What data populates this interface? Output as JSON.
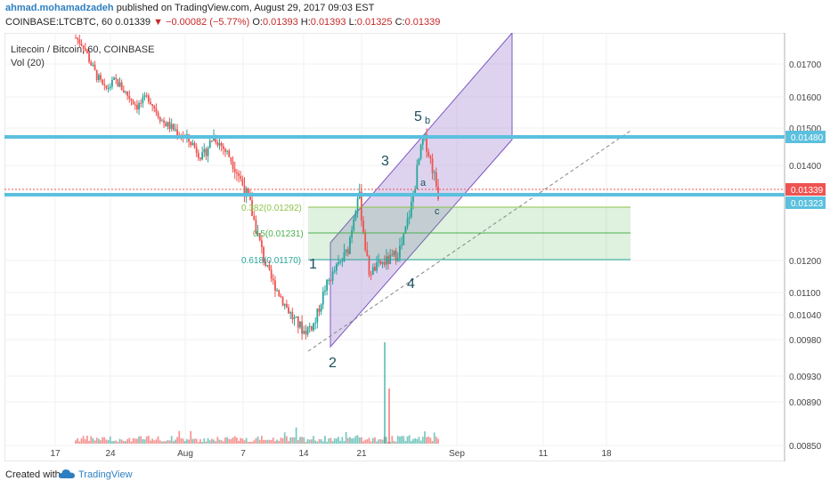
{
  "header": {
    "author": "ahmad.mohamadzadeh",
    "published": "published on TradingView.com, August 29, 2017 09:03 EST",
    "symbol": "COINBASE:LTCBTC, 60",
    "last": "0.01339",
    "arrow": "▼",
    "change": "−0.00082 (−5.77%)",
    "o_label": "O:",
    "o_val": "0.01393",
    "h_label": "H:",
    "h_val": "0.01393",
    "l_label": "L:",
    "l_val": "0.01325",
    "c_label": "C:",
    "c_val": "0.01339"
  },
  "overlay": {
    "title": "Litecoin / Bitcoin, 60, COINBASE",
    "volume": "Vol (20)"
  },
  "footer": {
    "created": "Created with",
    "brand": "TradingView"
  },
  "colors": {
    "up": "#26a69a",
    "down": "#ef5350",
    "channel": "#7e57c2",
    "hline": "#5bc0de",
    "fib": "#4caf50"
  },
  "chart_data": {
    "type": "candlestick",
    "x_ticks": [
      "17",
      "24",
      "Aug",
      "7",
      "14",
      "21",
      "Sep",
      "11",
      "18"
    ],
    "y_ticks": [
      "0.01700",
      "0.01600",
      "0.01500",
      "0.01400",
      "0.01200",
      "0.01100",
      "0.01040",
      "0.00980",
      "0.00930",
      "0.00890",
      "0.00850"
    ],
    "price_labels": [
      {
        "value": "0.01480",
        "bg": "#5bc0de",
        "price": 0.0148
      },
      {
        "value": "0.01339",
        "bg": "#ef5350",
        "price": 0.01339
      },
      {
        "value": "0.01323",
        "bg": "#5bc0de",
        "price": 0.01323
      }
    ],
    "fib_levels": [
      {
        "label": "0.382(0.01292)",
        "price": 0.01292,
        "color": "#8bc34a"
      },
      {
        "label": "0.5(0.01231)",
        "price": 0.01231,
        "color": "#4caf50"
      },
      {
        "label": "0.618(0.01170)",
        "price": 0.0117,
        "color": "#26a69a"
      }
    ],
    "wave_labels": [
      "1",
      "2",
      "3",
      "4",
      "5",
      "b",
      "a",
      "c"
    ],
    "price_path": [
      [
        0.0,
        0.0178
      ],
      [
        0.02,
        0.0176
      ],
      [
        0.05,
        0.0168
      ],
      [
        0.08,
        0.0162
      ],
      [
        0.11,
        0.0165
      ],
      [
        0.14,
        0.0161
      ],
      [
        0.17,
        0.0157
      ],
      [
        0.2,
        0.016
      ],
      [
        0.24,
        0.0152
      ],
      [
        0.28,
        0.0149
      ],
      [
        0.32,
        0.0146
      ],
      [
        0.35,
        0.0142
      ],
      [
        0.38,
        0.0148
      ],
      [
        0.42,
        0.0143
      ],
      [
        0.45,
        0.0138
      ],
      [
        0.48,
        0.0132
      ],
      [
        0.51,
        0.0123
      ],
      [
        0.54,
        0.0114
      ],
      [
        0.57,
        0.0108
      ],
      [
        0.6,
        0.0103
      ],
      [
        0.63,
        0.01
      ],
      [
        0.66,
        0.0102
      ],
      [
        0.69,
        0.0112
      ],
      [
        0.72,
        0.0118
      ],
      [
        0.75,
        0.0122
      ],
      [
        0.78,
        0.0135
      ],
      [
        0.81,
        0.0116
      ],
      [
        0.84,
        0.0119
      ],
      [
        0.87,
        0.012
      ],
      [
        0.9,
        0.0123
      ],
      [
        0.93,
        0.0133
      ],
      [
        0.96,
        0.0148
      ],
      [
        1.0,
        0.0134
      ]
    ]
  }
}
